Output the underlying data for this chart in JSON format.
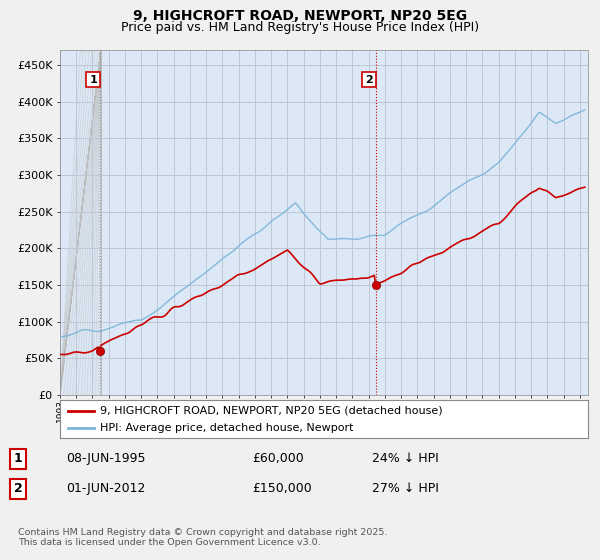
{
  "title": "9, HIGHCROFT ROAD, NEWPORT, NP20 5EG",
  "subtitle": "Price paid vs. HM Land Registry's House Price Index (HPI)",
  "ylabel_ticks": [
    "£0",
    "£50K",
    "£100K",
    "£150K",
    "£200K",
    "£250K",
    "£300K",
    "£350K",
    "£400K",
    "£450K"
  ],
  "ytick_vals": [
    0,
    50000,
    100000,
    150000,
    200000,
    250000,
    300000,
    350000,
    400000,
    450000
  ],
  "ylim": [
    0,
    470000
  ],
  "xlim_start": 1993.0,
  "xlim_end": 2025.5,
  "hpi_color": "#7ab4d8",
  "price_color": "#cc0000",
  "sale1_date": 1995.44,
  "sale1_price": 60000,
  "sale2_date": 2012.42,
  "sale2_price": 150000,
  "vline1_color": "#888888",
  "vline2_color": "#cc0000",
  "background_color": "#f0f0f0",
  "plot_bg_color": "#dce8f5",
  "grid_color": "#aaaacc",
  "legend_label1": "9, HIGHCROFT ROAD, NEWPORT, NP20 5EG (detached house)",
  "legend_label2": "HPI: Average price, detached house, Newport",
  "table_row1": [
    "1",
    "08-JUN-1995",
    "£60,000",
    "24% ↓ HPI"
  ],
  "table_row2": [
    "2",
    "01-JUN-2012",
    "£150,000",
    "27% ↓ HPI"
  ],
  "footnote": "Contains HM Land Registry data © Crown copyright and database right 2025.\nThis data is licensed under the Open Government Licence v3.0.",
  "title_fontsize": 10,
  "subtitle_fontsize": 9,
  "tick_fontsize": 8
}
